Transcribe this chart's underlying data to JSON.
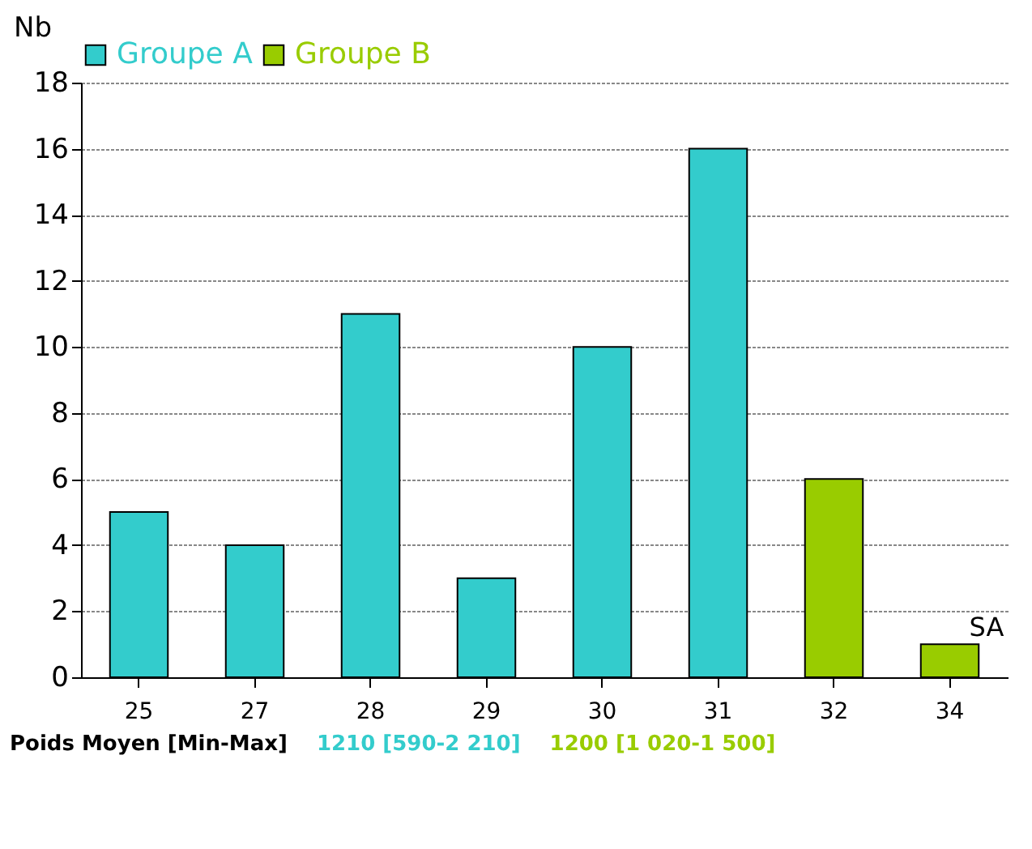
{
  "chart_data": {
    "type": "bar",
    "ylabel": "Nb",
    "categories": [
      "25",
      "27",
      "28",
      "29",
      "30",
      "31",
      "32",
      "34"
    ],
    "series": [
      {
        "name": "Groupe A",
        "color": "#33cccc",
        "values": [
          5,
          4,
          11,
          3,
          10,
          16,
          null,
          null
        ]
      },
      {
        "name": "Groupe B",
        "color": "#99cc00",
        "values": [
          null,
          null,
          null,
          null,
          null,
          null,
          6,
          1
        ]
      }
    ],
    "ylim": [
      0,
      18
    ],
    "yticks": [
      0,
      2,
      4,
      6,
      8,
      10,
      12,
      14,
      16,
      18
    ],
    "grid": "y",
    "legend": "top",
    "annotations": [
      {
        "text": "SA",
        "x": "34",
        "y": 1
      },
      "Poids Moyen [Min-Max]",
      "1210 [590-2 210]",
      "1200 [1 020-1 500]"
    ]
  }
}
